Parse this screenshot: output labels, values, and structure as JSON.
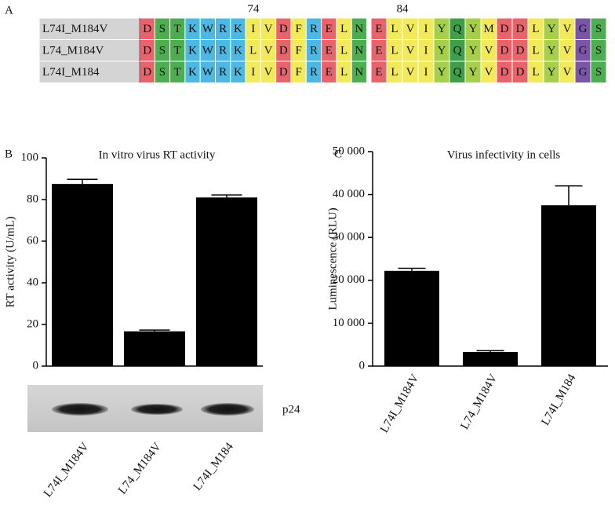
{
  "panel_labels": [
    "A",
    "B",
    "C"
  ],
  "alignment": {
    "position_labels": [
      74,
      84
    ],
    "residue_colors": {
      "D": "#e8636b",
      "E": "#e8636b",
      "S": "#4cae4f",
      "T": "#4cae4f",
      "N": "#4cae4f",
      "Q": "#3f9e48",
      "K": "#4db8e3",
      "R": "#4db8e3",
      "W": "#4db8e3",
      "I": "#f2ea5a",
      "V": "#f2ea5a",
      "L": "#f2ea5a",
      "F": "#f2ea5a",
      "M": "#f2ea5a",
      "Y": "#a6cf4a",
      "G": "#7a55a8"
    },
    "rows": [
      {
        "name": "L74I_M184V",
        "blocks": [
          "DSTKWRKIVDFRELN",
          "ELVIYQYMDDLYVGS"
        ]
      },
      {
        "name": "L74_M184V",
        "blocks": [
          "DSTKWRKLVDFRELN",
          "ELVIYQYVDDLYVGS"
        ]
      },
      {
        "name": "L74I_M184",
        "blocks": [
          "DSTKWRKIVDFRELN",
          "ELVIYQYVDDLYVGS"
        ]
      }
    ]
  },
  "chart_data": [
    {
      "type": "bar",
      "title": "In vitro virus RT activity",
      "y_label": "RT activity (U/mL)",
      "categories": [
        "L74I_M184V",
        "L74_M184V",
        "L74I_M184"
      ],
      "values": [
        87.5,
        16.7,
        81
      ],
      "errors": [
        2.2,
        0.6,
        1.2
      ],
      "color": "#000000",
      "ylim": [
        0,
        100
      ],
      "yticks": [
        0,
        20,
        40,
        60,
        80,
        100
      ],
      "blot_label": "p24"
    },
    {
      "type": "bar",
      "title": "Virus infectivity in cells",
      "y_label": "Luminescence (RLU)",
      "categories": [
        "L74I_M184V",
        "L74_M184V",
        "L74I_M184"
      ],
      "values": [
        22200,
        3300,
        37500
      ],
      "errors": [
        600,
        300,
        4500
      ],
      "color": "#000000",
      "ylim": [
        0,
        50000
      ],
      "yticks": [
        0,
        {
          "value": 10000,
          "label": "10 000"
        },
        {
          "value": 20000,
          "label": "20 000"
        },
        {
          "value": 30000,
          "label": "30 000"
        },
        {
          "value": 40000,
          "label": "40 000"
        },
        {
          "value": 50000,
          "label": "50 000"
        }
      ]
    }
  ]
}
